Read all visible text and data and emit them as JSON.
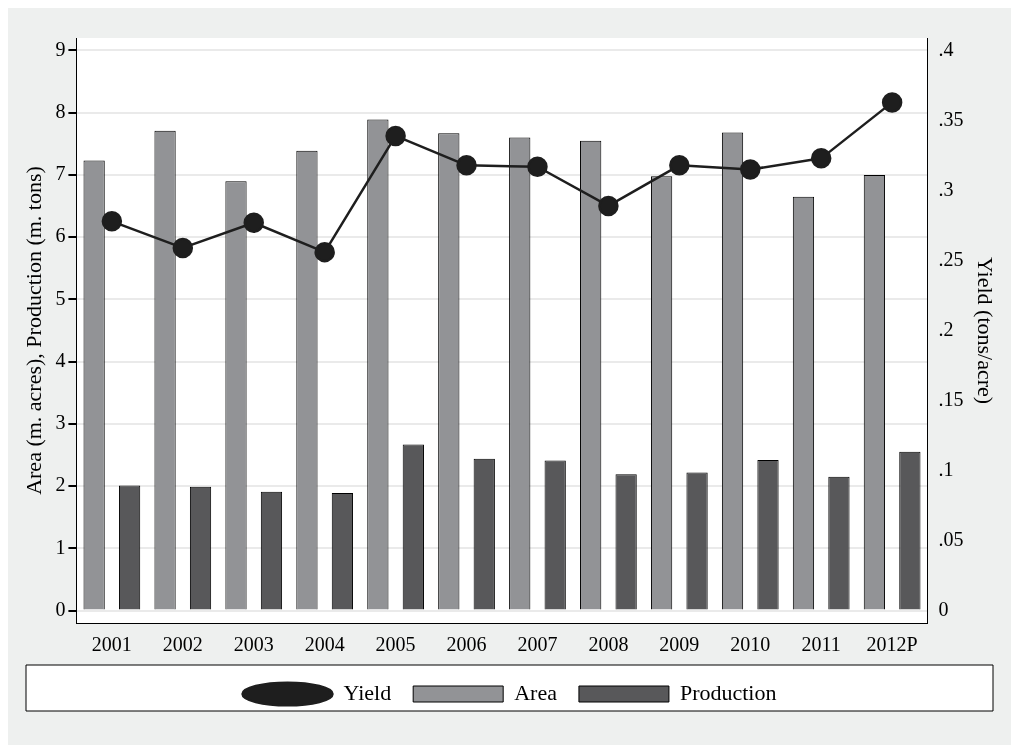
{
  "chart_data": {
    "type": "bar",
    "ylabel": "Area (m. acres), Production (m. tons)",
    "y2label": "Yield (tons/acre)",
    "categories": [
      "2001",
      "2002",
      "2003",
      "2004",
      "2005",
      "2006",
      "2007",
      "2008",
      "2009",
      "2010",
      "2011",
      "2012P"
    ],
    "series": [
      {
        "name": "Area",
        "color": "#929396",
        "values": [
          7.23,
          7.71,
          6.9,
          7.39,
          7.89,
          7.67,
          7.6,
          7.55,
          6.98,
          7.68,
          6.65,
          7.0
        ]
      },
      {
        "name": "Production",
        "color": "#58585a",
        "values": [
          2.01,
          1.99,
          1.91,
          1.89,
          2.67,
          2.44,
          2.41,
          2.19,
          2.22,
          2.42,
          2.15,
          2.55
        ]
      },
      {
        "name": "Yield",
        "type": "line",
        "axis": "y2",
        "color": "#1e1e1e",
        "values": [
          0.278,
          0.259,
          0.277,
          0.256,
          0.339,
          0.318,
          0.317,
          0.289,
          0.318,
          0.315,
          0.323,
          0.363
        ]
      }
    ],
    "ylim": [
      -0.2,
      9.2
    ],
    "yticks": [
      0,
      1,
      2,
      3,
      4,
      5,
      6,
      7,
      8,
      9
    ],
    "y2lim": [
      -0.009,
      0.409
    ],
    "y2ticks": [
      {
        "value": 0,
        "label": "0"
      },
      {
        "value": 0.05,
        "label": ".05"
      },
      {
        "value": 0.1,
        "label": ".1"
      },
      {
        "value": 0.15,
        "label": ".15"
      },
      {
        "value": 0.2,
        "label": ".2"
      },
      {
        "value": 0.25,
        "label": ".25"
      },
      {
        "value": 0.3,
        "label": ".3"
      },
      {
        "value": 0.35,
        "label": ".35"
      },
      {
        "value": 0.4,
        "label": ".4"
      }
    ],
    "grid": "y",
    "legend": "bottom",
    "marker": "circle"
  }
}
